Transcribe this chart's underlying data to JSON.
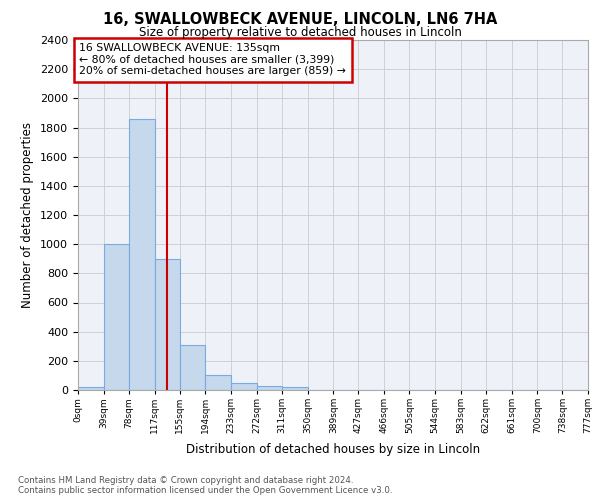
{
  "title": "16, SWALLOWBECK AVENUE, LINCOLN, LN6 7HA",
  "subtitle": "Size of property relative to detached houses in Lincoln",
  "xlabel": "Distribution of detached houses by size in Lincoln",
  "ylabel": "Number of detached properties",
  "footer_line1": "Contains HM Land Registry data © Crown copyright and database right 2024.",
  "footer_line2": "Contains public sector information licensed under the Open Government Licence v3.0.",
  "property_size": 135,
  "property_label": "16 SWALLOWBECK AVENUE: 135sqm",
  "annotation_line1": "← 80% of detached houses are smaller (3,399)",
  "annotation_line2": "20% of semi-detached houses are larger (859) →",
  "bar_color": "#c5d8ec",
  "bar_edge_color": "#7aabe0",
  "vline_color": "#cc0000",
  "annotation_box_edge": "#cc0000",
  "bin_edges": [
    0,
    39,
    78,
    117,
    155,
    194,
    233,
    272,
    311,
    350,
    389,
    427,
    466,
    505,
    544,
    583,
    622,
    661,
    700,
    738,
    777
  ],
  "bin_labels": [
    "0sqm",
    "39sqm",
    "78sqm",
    "117sqm",
    "155sqm",
    "194sqm",
    "233sqm",
    "272sqm",
    "311sqm",
    "350sqm",
    "389sqm",
    "427sqm",
    "466sqm",
    "505sqm",
    "544sqm",
    "583sqm",
    "622sqm",
    "661sqm",
    "700sqm",
    "738sqm",
    "777sqm"
  ],
  "bar_heights": [
    20,
    1000,
    1860,
    900,
    310,
    105,
    45,
    25,
    20,
    0,
    0,
    0,
    0,
    0,
    0,
    0,
    0,
    0,
    0,
    0
  ],
  "ylim": [
    0,
    2400
  ],
  "xlim_left": 0,
  "xlim_right": 777,
  "grid_color": "#d0d0d0",
  "background_color": "#eef2f8"
}
